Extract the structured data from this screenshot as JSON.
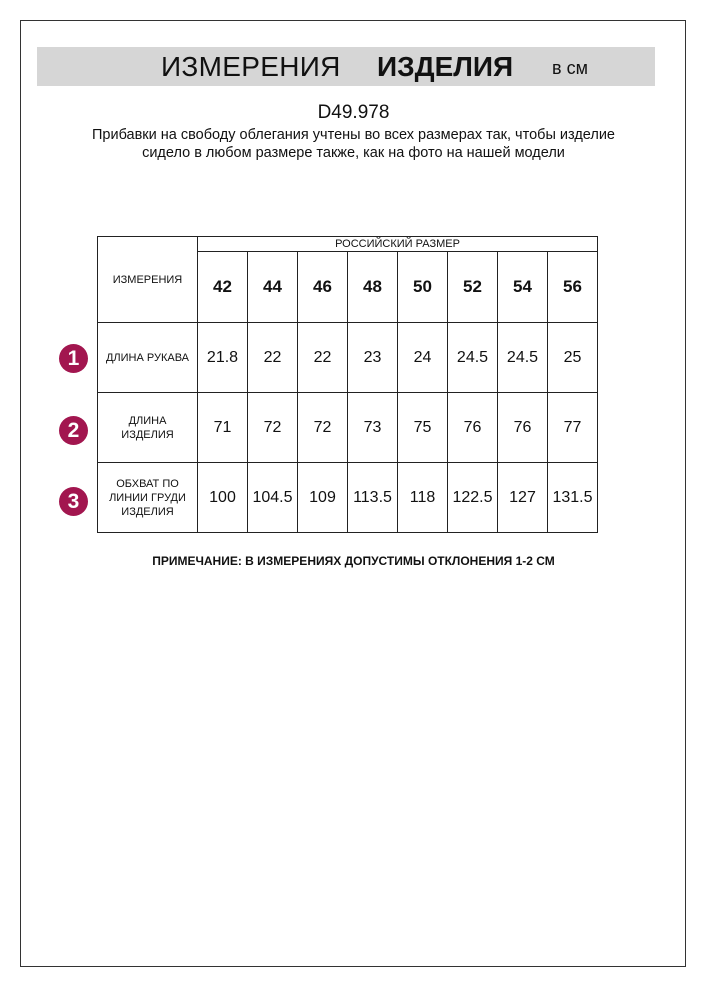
{
  "header": {
    "title_regular": "ИЗМЕРЕНИЯ",
    "title_bold": "ИЗДЕЛИЯ",
    "unit": "в см"
  },
  "article": "D49.978",
  "description": "Прибавки на свободу облегания учтены во всех размерах так, чтобы изделие сидело в любом размере также, как на фото на нашей модели",
  "table": {
    "measurements_header": "ИЗМЕРЕНИЯ",
    "size_group_header": "РОССИЙСКИЙ РАЗМЕР",
    "sizes": [
      "42",
      "44",
      "46",
      "48",
      "50",
      "52",
      "54",
      "56"
    ],
    "rows": [
      {
        "number": "1",
        "label": "ДЛИНА РУКАВА",
        "values": [
          "21.8",
          "22",
          "22",
          "23",
          "24",
          "24.5",
          "24.5",
          "25"
        ]
      },
      {
        "number": "2",
        "label": "ДЛИНА ИЗДЕЛИЯ",
        "values": [
          "71",
          "72",
          "72",
          "73",
          "75",
          "76",
          "76",
          "77"
        ]
      },
      {
        "number": "3",
        "label": "ОБХВАТ ПО ЛИНИИ ГРУДИ ИЗДЕЛИЯ",
        "values": [
          "100",
          "104.5",
          "109",
          "113.5",
          "118",
          "122.5",
          "127",
          "131.5"
        ]
      }
    ]
  },
  "note": "ПРИМЕЧАНИЕ: В ИЗМЕРЕНИЯХ ДОПУСТИМЫ ОТКЛОНЕНИЯ 1-2 СМ",
  "colors": {
    "badge": "#a2164f",
    "title_bar": "#d6d6d6"
  }
}
